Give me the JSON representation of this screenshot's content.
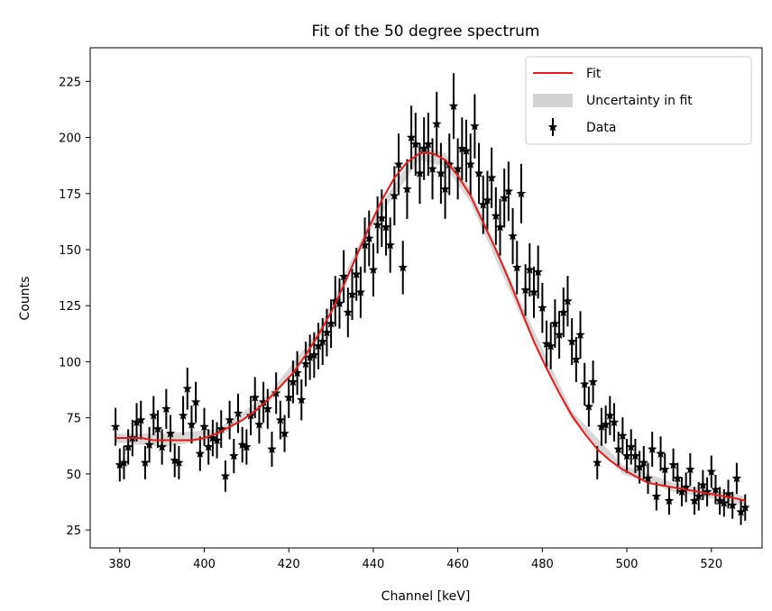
{
  "chart_data": {
    "type": "scatter",
    "title": "Fit of the 50 degree spectrum",
    "xlabel": "Channel [keV]",
    "ylabel": "Counts",
    "xlim": [
      373,
      532
    ],
    "ylim": [
      17,
      240
    ],
    "xticks": [
      380,
      400,
      420,
      440,
      460,
      480,
      500,
      520
    ],
    "yticks": [
      25,
      50,
      75,
      100,
      125,
      150,
      175,
      200,
      225
    ],
    "grid": false,
    "legend_position": "top-right",
    "legend": [
      {
        "label": "Fit",
        "kind": "line",
        "color": "#e8191c"
      },
      {
        "label": "Uncertainty in fit",
        "kind": "band",
        "color": "#d3d3d3"
      },
      {
        "label": "Data",
        "kind": "errorbar",
        "color": "#000000"
      }
    ],
    "fit": {
      "name": "Fit",
      "color": "#e8191c",
      "x": [
        379,
        382,
        385,
        388,
        391,
        394,
        397,
        400,
        403,
        406,
        409,
        412,
        415,
        418,
        421,
        424,
        427,
        430,
        433,
        436,
        439,
        442,
        445,
        448,
        451,
        454,
        457,
        460,
        463,
        466,
        469,
        472,
        475,
        478,
        481,
        484,
        487,
        490,
        493,
        496,
        499,
        502,
        505,
        508,
        511,
        514,
        517,
        520,
        523,
        526,
        528
      ],
      "y": [
        66,
        66,
        66,
        65,
        65,
        65,
        65,
        66,
        68,
        71,
        74,
        78,
        83,
        89,
        95,
        103,
        112,
        122,
        134,
        147,
        160,
        172,
        182,
        189,
        193,
        193,
        190,
        183,
        174,
        162,
        150,
        137,
        123,
        109,
        97,
        86,
        76,
        68,
        61,
        56,
        52,
        49,
        46,
        45,
        44,
        43,
        42,
        41,
        40,
        39,
        38
      ]
    },
    "band": {
      "name": "Uncertainty in fit",
      "color": "#d3d3d3",
      "x": [
        379,
        391,
        403,
        415,
        427,
        439,
        451,
        457,
        463,
        475,
        487,
        499,
        511,
        523,
        528
      ],
      "lower": [
        64,
        62,
        66,
        81,
        110,
        158,
        190,
        187,
        171,
        120,
        74,
        50,
        42,
        38,
        36
      ],
      "upper": [
        68,
        68,
        70,
        85,
        114,
        162,
        196,
        193,
        177,
        126,
        78,
        54,
        46,
        42,
        40
      ]
    },
    "series": [
      {
        "name": "Data",
        "color": "#000000",
        "marker": "star",
        "x": [
          379,
          380,
          381,
          382,
          383,
          384,
          385,
          386,
          387,
          388,
          389,
          390,
          391,
          392,
          393,
          394,
          395,
          396,
          397,
          398,
          399,
          400,
          401,
          402,
          403,
          404,
          405,
          406,
          407,
          408,
          409,
          410,
          411,
          412,
          413,
          414,
          415,
          416,
          417,
          418,
          419,
          420,
          421,
          422,
          423,
          424,
          425,
          426,
          427,
          428,
          429,
          430,
          431,
          432,
          433,
          434,
          435,
          436,
          437,
          438,
          439,
          440,
          441,
          442,
          443,
          444,
          445,
          446,
          447,
          448,
          449,
          450,
          451,
          452,
          453,
          454,
          455,
          456,
          457,
          458,
          459,
          460,
          461,
          462,
          463,
          464,
          465,
          466,
          467,
          468,
          469,
          470,
          471,
          472,
          473,
          474,
          475,
          476,
          477,
          478,
          479,
          480,
          481,
          482,
          483,
          484,
          485,
          486,
          487,
          488,
          489,
          490,
          491,
          492,
          493,
          494,
          495,
          496,
          497,
          498,
          499,
          500,
          501,
          502,
          503,
          504,
          505,
          506,
          507,
          508,
          509,
          510,
          511,
          512,
          513,
          514,
          515,
          516,
          517,
          518,
          519,
          520,
          521,
          522,
          523,
          524,
          525,
          526,
          527,
          528
        ],
        "y": [
          71,
          54,
          55,
          62,
          66,
          73,
          74,
          55,
          63,
          76,
          70,
          62,
          79,
          68,
          56,
          55,
          76,
          88,
          72,
          82,
          59,
          71,
          62,
          66,
          65,
          70,
          49,
          74,
          58,
          77,
          63,
          62,
          76,
          84,
          72,
          82,
          79,
          61,
          86,
          74,
          68,
          84,
          91,
          95,
          83,
          99,
          102,
          103,
          107,
          109,
          113,
          117,
          127,
          126,
          138,
          122,
          130,
          139,
          131,
          152,
          155,
          141,
          161,
          164,
          160,
          152,
          174,
          188,
          142,
          177,
          200,
          197,
          184,
          195,
          197,
          186,
          206,
          184,
          177,
          188,
          214,
          186,
          195,
          194,
          188,
          205,
          184,
          170,
          172,
          182,
          165,
          160,
          173,
          176,
          156,
          142,
          175,
          132,
          141,
          131,
          140,
          124,
          108,
          107,
          117,
          112,
          122,
          127,
          109,
          101,
          112,
          90,
          80,
          91,
          55,
          71,
          72,
          76,
          73,
          61,
          67,
          58,
          62,
          58,
          53,
          55,
          48,
          61,
          40,
          59,
          52,
          38,
          54,
          48,
          42,
          44,
          52,
          38,
          40,
          45,
          42,
          51,
          43,
          38,
          37,
          41,
          36,
          48,
          33,
          35
        ]
      }
    ]
  }
}
